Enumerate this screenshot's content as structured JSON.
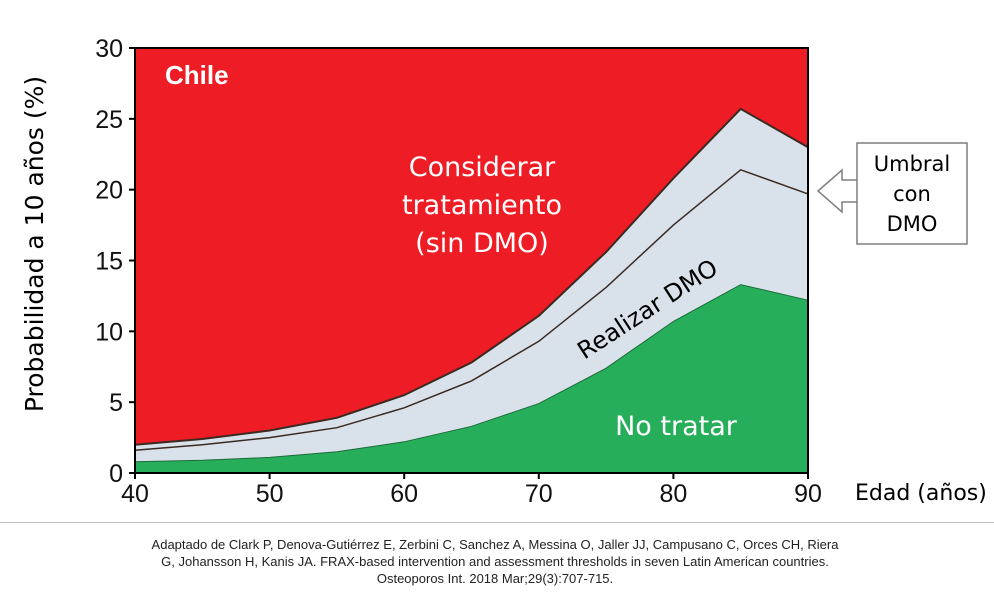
{
  "chart_data": {
    "type": "area",
    "title": "Chile",
    "xlabel": "Edad (años)",
    "ylabel": "Probabilidad a 10 años (%)",
    "xlim": [
      40,
      90
    ],
    "ylim": [
      0,
      30
    ],
    "x_ticks": [
      "40",
      "50",
      "60",
      "70",
      "80",
      "90"
    ],
    "y_ticks": [
      "0",
      "5",
      "10",
      "15",
      "20",
      "25",
      "30"
    ],
    "x": [
      40,
      45,
      50,
      55,
      60,
      65,
      70,
      75,
      80,
      85,
      90
    ],
    "boundaries": {
      "lower": [
        0.8,
        0.9,
        1.1,
        1.5,
        2.2,
        3.3,
        4.9,
        7.4,
        10.7,
        13.3,
        12.2
      ],
      "middle": [
        1.6,
        2.0,
        2.5,
        3.2,
        4.6,
        6.5,
        9.3,
        13.1,
        17.5,
        21.4,
        19.7
      ],
      "upper": [
        2.0,
        2.4,
        3.0,
        3.9,
        5.5,
        7.8,
        11.1,
        15.6,
        20.8,
        25.7,
        23.0
      ]
    },
    "regions": {
      "consider": [
        "Considerar",
        "tratamiento",
        "(sin DMO)"
      ],
      "bmd": "Realizar DMO",
      "no_treat": "No tratar"
    },
    "callout": [
      "Umbral",
      "con",
      "DMO"
    ],
    "colors": {
      "consider": "#ee1c24",
      "bmd": "#d9e2ea",
      "no_treat": "#27ae5a",
      "boundary_line": "#3b2a22"
    }
  },
  "citation": {
    "line1": "Adaptado de Clark P, Denova-Gutiérrez E, Zerbini C, Sanchez A, Messina O, Jaller JJ, Campusano C, Orces CH, Riera",
    "line2": "G, Johansson H, Kanis JA. FRAX-based intervention and assessment thresholds in seven Latin American countries.",
    "line3": "Osteoporos Int. 2018 Mar;29(3):707-715."
  }
}
